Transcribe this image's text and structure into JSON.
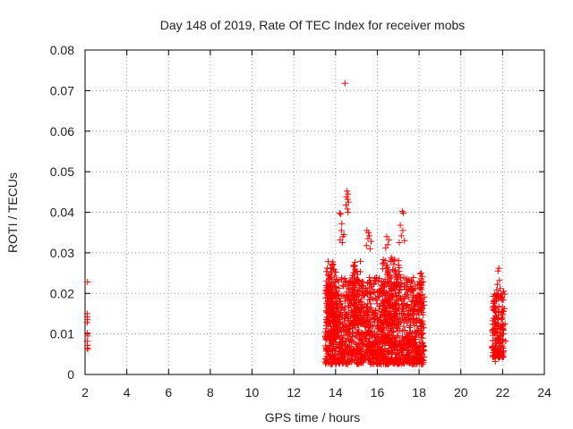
{
  "chart_data": {
    "type": "scatter",
    "title": "Day 148 of 2019, Rate Of TEC Index for receiver mobs",
    "xlabel": "GPS time / hours",
    "ylabel": "ROTI / TECUs",
    "xlim": [
      2,
      24
    ],
    "ylim": [
      0,
      0.08
    ],
    "xticks": [
      2,
      4,
      6,
      8,
      10,
      12,
      14,
      16,
      18,
      20,
      22,
      24
    ],
    "xtick_labels": [
      "2",
      "4",
      "6",
      "8",
      "10",
      "12",
      "14",
      "16",
      "18",
      "20",
      "22",
      "24"
    ],
    "yticks": [
      0,
      0.01,
      0.02,
      0.03,
      0.04,
      0.05,
      0.06,
      0.07,
      0.08
    ],
    "ytick_labels": [
      "0",
      "0.01",
      "0.02",
      "0.03",
      "0.04",
      "0.05",
      "0.06",
      "0.07",
      "0.08"
    ],
    "grid": true,
    "marker": "+",
    "marker_color": "#ff0000",
    "series": [
      {
        "name": "ROTI",
        "points": [
          [
            2.12,
            0.0228
          ],
          [
            2.1,
            0.015
          ],
          [
            2.11,
            0.0142
          ],
          [
            2.12,
            0.0135
          ],
          [
            2.1,
            0.0128
          ],
          [
            2.11,
            0.0102
          ],
          [
            2.13,
            0.0095
          ],
          [
            2.1,
            0.0082
          ],
          [
            2.12,
            0.0072
          ],
          [
            2.11,
            0.0065
          ],
          [
            2.13,
            0.0062
          ],
          [
            14.45,
            0.0718
          ],
          [
            14.55,
            0.0452
          ],
          [
            14.6,
            0.0445
          ],
          [
            14.52,
            0.0438
          ],
          [
            14.58,
            0.0432
          ],
          [
            14.62,
            0.0425
          ],
          [
            14.5,
            0.0418
          ],
          [
            14.57,
            0.0408
          ],
          [
            14.6,
            0.04
          ],
          [
            14.2,
            0.0398
          ],
          [
            14.25,
            0.0395
          ],
          [
            14.3,
            0.0372
          ],
          [
            14.28,
            0.0355
          ],
          [
            14.35,
            0.034
          ],
          [
            14.22,
            0.0332
          ],
          [
            14.4,
            0.0345
          ],
          [
            14.32,
            0.0325
          ],
          [
            15.5,
            0.0355
          ],
          [
            15.58,
            0.035
          ],
          [
            15.62,
            0.0342
          ],
          [
            15.55,
            0.0335
          ],
          [
            15.7,
            0.0328
          ],
          [
            15.48,
            0.0318
          ],
          [
            15.65,
            0.031
          ],
          [
            16.5,
            0.032
          ],
          [
            16.45,
            0.034
          ],
          [
            16.55,
            0.0332
          ],
          [
            16.4,
            0.0312
          ],
          [
            17.2,
            0.0402
          ],
          [
            17.25,
            0.0398
          ],
          [
            17.1,
            0.0368
          ],
          [
            17.22,
            0.0355
          ],
          [
            17.15,
            0.0342
          ],
          [
            17.3,
            0.033
          ],
          [
            17.05,
            0.0325
          ],
          [
            18.05,
            0.0248
          ],
          [
            18.1,
            0.025
          ],
          [
            18.15,
            0.0242
          ],
          [
            18.08,
            0.0225
          ],
          [
            18.12,
            0.021
          ],
          [
            21.82,
            0.0262
          ],
          [
            21.78,
            0.0255
          ],
          [
            21.85,
            0.0232
          ],
          [
            21.75,
            0.0222
          ],
          [
            21.88,
            0.0212
          ],
          [
            21.72,
            0.0208
          ],
          [
            22.05,
            0.0205
          ],
          [
            22.1,
            0.0198
          ],
          [
            21.68,
            0.0195
          ],
          [
            22.08,
            0.0162
          ],
          [
            22.12,
            0.0125
          ],
          [
            22.15,
            0.0082
          ],
          [
            22.05,
            0.0058
          ],
          [
            21.65,
            0.0032
          ],
          [
            21.62,
            0.0048
          ]
        ],
        "clusters": [
          {
            "x_range": [
              13.5,
              18.25
            ],
            "y_range": [
              0.0025,
              0.024
            ],
            "count": 1500
          },
          {
            "x_range": [
              13.55,
              14.05
            ],
            "y_range": [
              0.008,
              0.028
            ],
            "count": 140
          },
          {
            "x_range": [
              14.8,
              15.25
            ],
            "y_range": [
              0.012,
              0.028
            ],
            "count": 70
          },
          {
            "x_range": [
              16.2,
              17.1
            ],
            "y_range": [
              0.012,
              0.029
            ],
            "count": 120
          },
          {
            "x_range": [
              21.5,
              22.05
            ],
            "y_range": [
              0.004,
              0.02
            ],
            "count": 160
          }
        ]
      }
    ]
  }
}
